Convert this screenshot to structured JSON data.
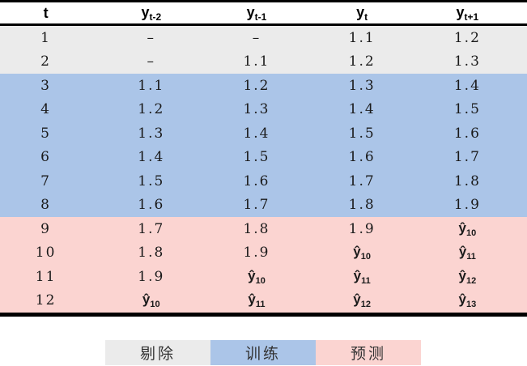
{
  "table": {
    "headers": [
      {
        "base": "t",
        "sub": ""
      },
      {
        "base": "y",
        "sub": "t-2"
      },
      {
        "base": "y",
        "sub": "t-1"
      },
      {
        "base": "y",
        "sub": "t"
      },
      {
        "base": "y",
        "sub": "t+1"
      }
    ],
    "rows": [
      {
        "zone": "excluded",
        "cells": [
          {
            "text": "1"
          },
          {
            "text": "–"
          },
          {
            "text": "–"
          },
          {
            "text": "1.1"
          },
          {
            "text": "1.2"
          }
        ]
      },
      {
        "zone": "excluded",
        "cells": [
          {
            "text": "2"
          },
          {
            "text": "–"
          },
          {
            "text": "1.1"
          },
          {
            "text": "1.2"
          },
          {
            "text": "1.3"
          }
        ]
      },
      {
        "zone": "training",
        "cells": [
          {
            "text": "3"
          },
          {
            "text": "1.1"
          },
          {
            "text": "1.2"
          },
          {
            "text": "1.3"
          },
          {
            "text": "1.4"
          }
        ]
      },
      {
        "zone": "training",
        "cells": [
          {
            "text": "4"
          },
          {
            "text": "1.2"
          },
          {
            "text": "1.3"
          },
          {
            "text": "1.4"
          },
          {
            "text": "1.5"
          }
        ]
      },
      {
        "zone": "training",
        "cells": [
          {
            "text": "5"
          },
          {
            "text": "1.3"
          },
          {
            "text": "1.4"
          },
          {
            "text": "1.5"
          },
          {
            "text": "1.6"
          }
        ]
      },
      {
        "zone": "training",
        "cells": [
          {
            "text": "6"
          },
          {
            "text": "1.4"
          },
          {
            "text": "1.5"
          },
          {
            "text": "1.6"
          },
          {
            "text": "1.7"
          }
        ]
      },
      {
        "zone": "training",
        "cells": [
          {
            "text": "7"
          },
          {
            "text": "1.5"
          },
          {
            "text": "1.6"
          },
          {
            "text": "1.7"
          },
          {
            "text": "1.8"
          }
        ]
      },
      {
        "zone": "training",
        "cells": [
          {
            "text": "8"
          },
          {
            "text": "1.6"
          },
          {
            "text": "1.7"
          },
          {
            "text": "1.8"
          },
          {
            "text": "1.9"
          }
        ]
      },
      {
        "zone": "prediction",
        "cells": [
          {
            "text": "9"
          },
          {
            "text": "1.7"
          },
          {
            "text": "1.8"
          },
          {
            "text": "1.9"
          },
          {
            "hat": "10"
          }
        ]
      },
      {
        "zone": "prediction",
        "cells": [
          {
            "text": "10"
          },
          {
            "text": "1.8"
          },
          {
            "text": "1.9"
          },
          {
            "hat": "10"
          },
          {
            "hat": "11"
          }
        ]
      },
      {
        "zone": "prediction",
        "cells": [
          {
            "text": "11"
          },
          {
            "text": "1.9"
          },
          {
            "hat": "10"
          },
          {
            "hat": "11"
          },
          {
            "hat": "12"
          }
        ]
      },
      {
        "zone": "prediction",
        "cells": [
          {
            "text": "12"
          },
          {
            "hat": "10"
          },
          {
            "hat": "11"
          },
          {
            "hat": "12"
          },
          {
            "hat": "13"
          }
        ]
      }
    ]
  },
  "legend": {
    "items": [
      {
        "name": "excluded",
        "label": "剔除",
        "color": "#ebebeb"
      },
      {
        "name": "training",
        "label": "训练",
        "color": "#abc5e8"
      },
      {
        "name": "prediction",
        "label": "预测",
        "color": "#fbd4d1"
      }
    ]
  },
  "colors": {
    "border": "#000000",
    "header_background": "#ffffff",
    "excluded_background": "#ebebeb",
    "training_background": "#abc5e8",
    "prediction_background": "#fbd4d1"
  },
  "chart_data": {
    "type": "table",
    "columns": [
      "t",
      "y_(t-2)",
      "y_(t-1)",
      "y_t",
      "y_(t+1)"
    ],
    "rows": [
      [
        "1",
        "-",
        "-",
        "1.1",
        "1.2"
      ],
      [
        "2",
        "-",
        "1.1",
        "1.2",
        "1.3"
      ],
      [
        "3",
        "1.1",
        "1.2",
        "1.3",
        "1.4"
      ],
      [
        "4",
        "1.2",
        "1.3",
        "1.4",
        "1.5"
      ],
      [
        "5",
        "1.3",
        "1.4",
        "1.5",
        "1.6"
      ],
      [
        "6",
        "1.4",
        "1.5",
        "1.6",
        "1.7"
      ],
      [
        "7",
        "1.5",
        "1.6",
        "1.7",
        "1.8"
      ],
      [
        "8",
        "1.6",
        "1.7",
        "1.8",
        "1.9"
      ],
      [
        "9",
        "1.7",
        "1.8",
        "1.9",
        "ŷ_10"
      ],
      [
        "10",
        "1.8",
        "1.9",
        "ŷ_10",
        "ŷ_11"
      ],
      [
        "11",
        "1.9",
        "ŷ_10",
        "ŷ_11",
        "ŷ_12"
      ],
      [
        "12",
        "ŷ_10",
        "ŷ_11",
        "ŷ_12",
        "ŷ_13"
      ]
    ],
    "row_groups": [
      {
        "label": "剔除",
        "rows": [
          1,
          2
        ],
        "color": "#ebebeb"
      },
      {
        "label": "训练",
        "rows": [
          3,
          4,
          5,
          6,
          7,
          8
        ],
        "color": "#abc5e8"
      },
      {
        "label": "预测",
        "rows": [
          9,
          10,
          11,
          12
        ],
        "color": "#fbd4d1"
      }
    ],
    "legend_position": "bottom"
  }
}
